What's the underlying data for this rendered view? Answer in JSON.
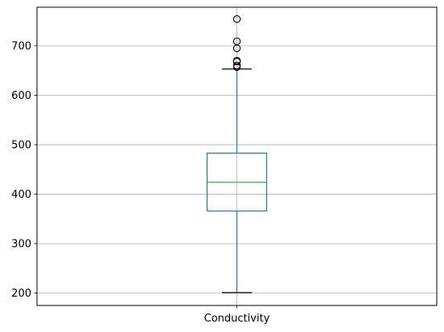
{
  "chart_data": {
    "type": "box",
    "title": "",
    "xlabel": "",
    "ylabel": "",
    "categories": [
      "Conductivity"
    ],
    "boxes": [
      {
        "category": "Conductivity",
        "whisker_low": 201,
        "q1": 366,
        "median": 424,
        "q3": 483,
        "whisker_high": 653,
        "outliers": [
          657,
          660,
          668,
          670,
          695,
          709,
          754
        ]
      }
    ],
    "ylim": [
      175,
      778
    ],
    "y_ticks": [
      200,
      300,
      400,
      500,
      600,
      700
    ],
    "grid": true,
    "colors": {
      "box": "#1f77b4",
      "whisker": "#1f77b4",
      "cap": "#000000",
      "median": "#2ca02c",
      "outlier": "#000000",
      "grid": "#b0b0b0",
      "axis": "#000000"
    }
  }
}
